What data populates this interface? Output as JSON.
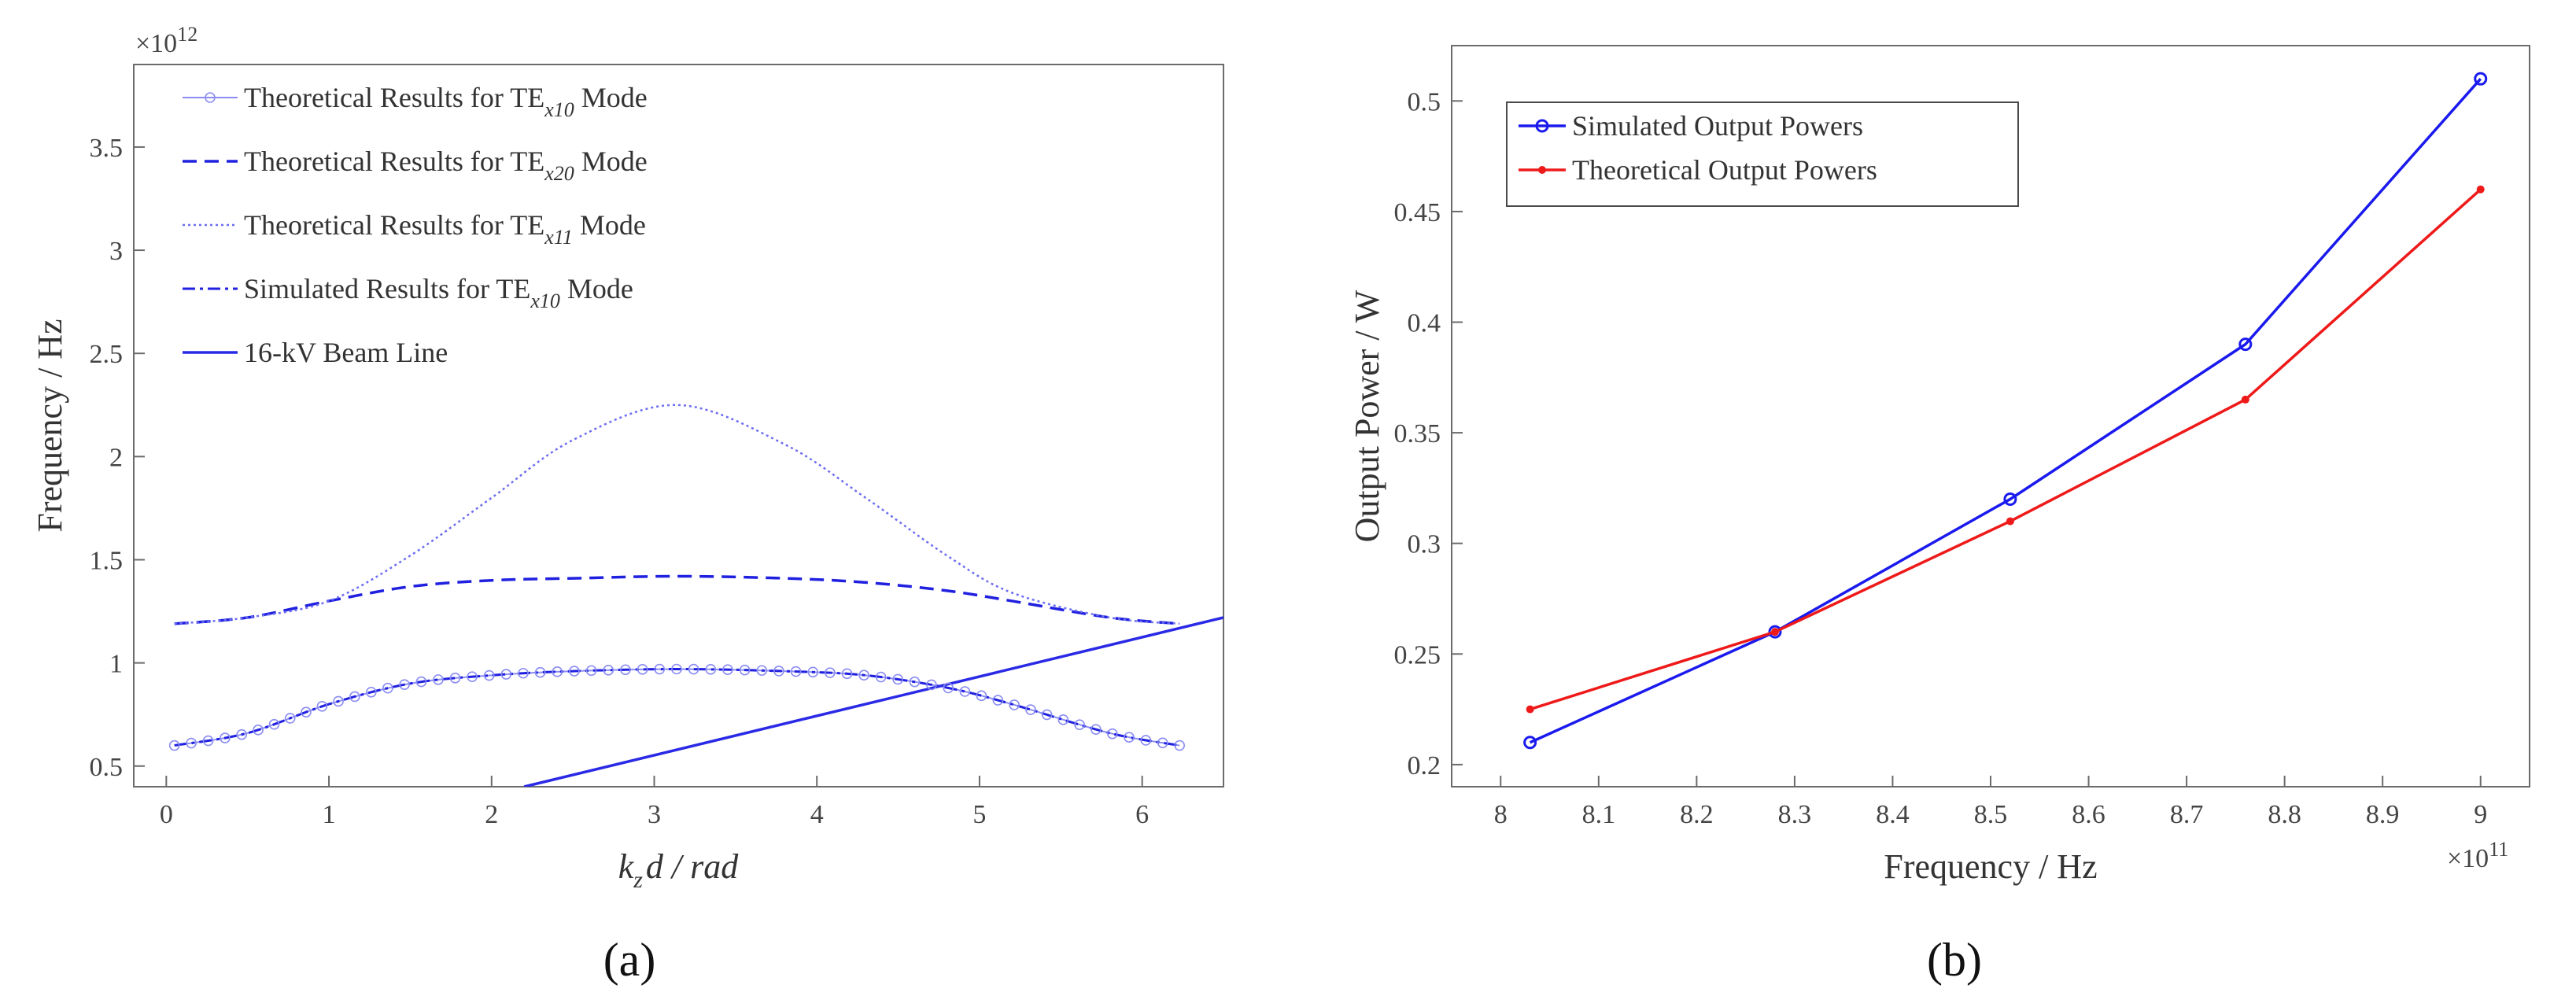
{
  "chart_data": [
    {
      "type": "line",
      "panel_label": "(a)",
      "xlabel": "k_z d / rad",
      "xlabel_parts": {
        "k": "k",
        "sub": "z",
        "rest": "d / rad"
      },
      "ylabel": "Frequency / Hz",
      "y_multiplier": "×10",
      "y_multiplier_exp": "12",
      "xlim": [
        -0.2,
        6.5
      ],
      "ylim": [
        0.4,
        3.9
      ],
      "xticks": [
        0,
        1,
        2,
        3,
        4,
        5,
        6
      ],
      "yticks": [
        0.5,
        1,
        1.5,
        2,
        2.5,
        3,
        3.5
      ],
      "grid": false,
      "legend_position": "top-left",
      "series": [
        {
          "name": "Theoretical Results for TE",
          "name_sub": "x10",
          "name_suffix": " Mode",
          "style": "circle-marker",
          "color": "#8a8cf2",
          "x": [
            0.05,
            0.5,
            1.0,
            1.5,
            2.0,
            2.5,
            3.14,
            3.8,
            4.3,
            4.8,
            5.2,
            5.8,
            6.23
          ],
          "y": [
            0.6,
            0.66,
            0.8,
            0.9,
            0.94,
            0.96,
            0.97,
            0.96,
            0.94,
            0.88,
            0.8,
            0.66,
            0.6
          ]
        },
        {
          "name": "Theoretical Results for TE",
          "name_sub": "x20",
          "name_suffix": " Mode",
          "style": "dashed",
          "color": "#2020e0",
          "x": [
            0.05,
            0.5,
            1.0,
            1.5,
            2.0,
            2.5,
            3.14,
            3.8,
            4.3,
            4.8,
            5.2,
            5.8,
            6.23
          ],
          "y": [
            1.19,
            1.22,
            1.3,
            1.37,
            1.4,
            1.41,
            1.42,
            1.41,
            1.39,
            1.35,
            1.3,
            1.22,
            1.19
          ]
        },
        {
          "name": "Theoretical Results for TE",
          "name_sub": "x11",
          "name_suffix": " Mode",
          "style": "dotted",
          "color": "#6c6ef0",
          "x": [
            0.05,
            0.5,
            1.0,
            1.5,
            2.0,
            2.5,
            3.14,
            3.8,
            4.3,
            4.8,
            5.2,
            5.8,
            6.23
          ],
          "y": [
            1.19,
            1.22,
            1.3,
            1.52,
            1.8,
            2.08,
            2.25,
            2.06,
            1.8,
            1.52,
            1.34,
            1.22,
            1.19
          ]
        },
        {
          "name": "Simulated Results for TE",
          "name_sub": "x10",
          "name_suffix": " Mode",
          "style": "dashdot",
          "color": "#2020e0",
          "x": [
            0.05,
            0.5,
            1.0,
            1.5,
            2.0,
            2.5,
            3.14,
            3.8,
            4.3,
            4.8,
            5.2,
            5.8,
            6.23
          ],
          "y": [
            0.6,
            0.66,
            0.8,
            0.9,
            0.94,
            0.96,
            0.97,
            0.96,
            0.94,
            0.88,
            0.8,
            0.66,
            0.6
          ]
        },
        {
          "name": "16-kV Beam Line",
          "name_sub": "",
          "name_suffix": "",
          "style": "solid",
          "color": "#2a2ae6",
          "x": [
            2.2,
            6.5
          ],
          "y": [
            0.4,
            1.22
          ]
        }
      ]
    },
    {
      "type": "line",
      "panel_label": "(b)",
      "xlabel": "Frequency / Hz",
      "ylabel": "Output Power / W",
      "x_multiplier": "×10",
      "x_multiplier_exp": "11",
      "xlim": [
        7.95,
        9.05
      ],
      "ylim": [
        0.19,
        0.525
      ],
      "xticks": [
        8,
        8.1,
        8.2,
        8.3,
        8.4,
        8.5,
        8.6,
        8.7,
        8.8,
        8.9,
        9
      ],
      "yticks": [
        0.2,
        0.25,
        0.3,
        0.35,
        0.4,
        0.45,
        0.5
      ],
      "grid": false,
      "legend_position": "top-left",
      "series": [
        {
          "name": "Simulated Output Powers",
          "color": "#1a1aee",
          "marker": "open-circle",
          "x": [
            8.03,
            8.28,
            8.52,
            8.76,
            9.0
          ],
          "y": [
            0.21,
            0.26,
            0.32,
            0.39,
            0.51
          ]
        },
        {
          "name": "Theoretical Output Powers",
          "color": "#ee1a1a",
          "marker": "dot",
          "x": [
            8.03,
            8.28,
            8.52,
            8.76,
            9.0
          ],
          "y": [
            0.225,
            0.26,
            0.31,
            0.365,
            0.46
          ]
        }
      ]
    }
  ]
}
